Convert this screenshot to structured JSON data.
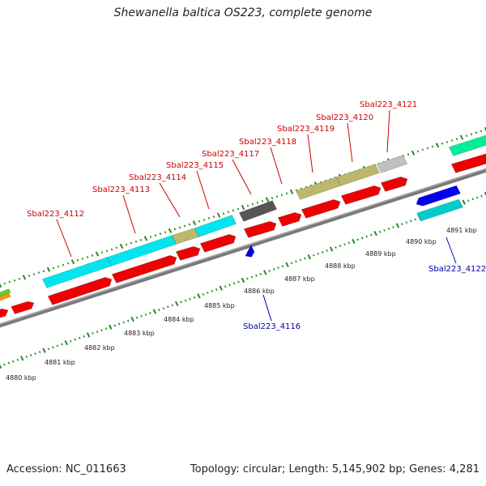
{
  "title": "Shewanella baltica OS223, complete genome",
  "footer": {
    "accession": "Accession: NC_011663",
    "summary": "Topology: circular; Length: 5,145,902 bp; Genes: 4,281"
  },
  "colors": {
    "backbone": "#8c8c8c",
    "tick": "#228b22",
    "cds": "#ee0000",
    "label_fwd": "#cc0000",
    "label_rev": "#0000aa"
  },
  "scale_ticks": [
    {
      "label": "4880 kbp"
    },
    {
      "label": "4881 kbp"
    },
    {
      "label": "4882 kbp"
    },
    {
      "label": "4883 kbp"
    },
    {
      "label": "4884 kbp"
    },
    {
      "label": "4885 kbp"
    },
    {
      "label": "4886 kbp"
    },
    {
      "label": "4887 kbp"
    },
    {
      "label": "4888 kbp"
    },
    {
      "label": "4889 kbp"
    },
    {
      "label": "4890 kbp"
    },
    {
      "label": "4891 kbp"
    }
  ],
  "forward_genes": [
    {
      "label": "Sbal223_4112",
      "color": "#00e5ee"
    },
    {
      "label": "Sbal223_4113",
      "color": "#00e5ee"
    },
    {
      "label": "Sbal223_4114",
      "color": "#bdb76b"
    },
    {
      "label": "Sbal223_4115",
      "color": "#00e5ee"
    },
    {
      "label": "Sbal223_4117",
      "color": "#555555"
    },
    {
      "label": "Sbal223_4118",
      "color": "#ffffff"
    },
    {
      "label": "Sbal223_4119",
      "color": "#bdb76b"
    },
    {
      "label": "Sbal223_4120",
      "color": "#bdb76b"
    },
    {
      "label": "Sbal223_4121",
      "color": "#c0c0c0"
    }
  ],
  "reverse_genes": [
    {
      "label": "Sbal223_4116",
      "color": "#0000ee"
    },
    {
      "label": "Sbal223_4122",
      "color": "#0000ee"
    }
  ]
}
